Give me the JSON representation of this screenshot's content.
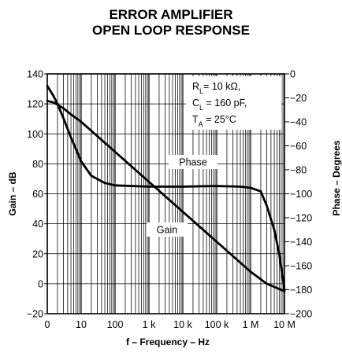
{
  "chart_data": {
    "type": "line",
    "title": [
      "ERROR AMPLIFIER",
      "OPEN LOOP RESPONSE"
    ],
    "xlabel": "f – Frequency – Hz",
    "ylabel_left": "Gain – dB",
    "ylabel_right": "Phase – Degrees",
    "x_scale": "log",
    "x_range": [
      1,
      10000000
    ],
    "x_ticks": [
      {
        "value": 1,
        "label": "0"
      },
      {
        "value": 10,
        "label": "10"
      },
      {
        "value": 100,
        "label": "100"
      },
      {
        "value": 1000,
        "label": "1 k"
      },
      {
        "value": 10000,
        "label": "10 k"
      },
      {
        "value": 100000,
        "label": "100 k"
      },
      {
        "value": 1000000,
        "label": "1 M"
      },
      {
        "value": 10000000,
        "label": "10 M"
      }
    ],
    "y_left_range": [
      -20,
      140
    ],
    "y_left_ticks": [
      "−20",
      "0",
      "20",
      "40",
      "60",
      "80",
      "100",
      "120",
      "140"
    ],
    "y_right_range": [
      -200,
      0
    ],
    "y_right_ticks": [
      "−200",
      "−180",
      "−160",
      "−140",
      "−120",
      "−100",
      "−80",
      "−60",
      "−40",
      "−20",
      "0"
    ],
    "grid": true,
    "series": [
      {
        "name": "Gain",
        "axis": "left",
        "x": [
          1,
          1.5,
          2,
          3,
          5,
          10,
          100,
          1000,
          10000,
          100000,
          1000000,
          3000000,
          10000000
        ],
        "y": [
          122,
          121,
          119.5,
          117,
          113,
          108,
          88,
          68,
          48,
          28,
          8,
          0,
          -5
        ]
      },
      {
        "name": "Phase",
        "axis": "right",
        "x": [
          1,
          1.5,
          2,
          3,
          5,
          10,
          20,
          50,
          100,
          1000,
          10000,
          100000,
          500000,
          1000000,
          2000000,
          3000000,
          5000000,
          7000000,
          10000000
        ],
        "y": [
          -10,
          -18,
          -25,
          -37,
          -53,
          -73,
          -85,
          -91,
          -93,
          -94,
          -94,
          -93.5,
          -94,
          -95,
          -98,
          -110,
          -130,
          -150,
          -180
        ]
      }
    ],
    "annotations": {
      "phase_label": "Phase",
      "gain_label": "Gain",
      "conditions": [
        {
          "main": "R",
          "sub": "L",
          "rest": "= 10 kΩ,"
        },
        {
          "main": "C",
          "sub": "L",
          "rest": " = 160 pF,"
        },
        {
          "main": "T",
          "sub": "A",
          "rest": " = 25°C"
        }
      ]
    }
  }
}
